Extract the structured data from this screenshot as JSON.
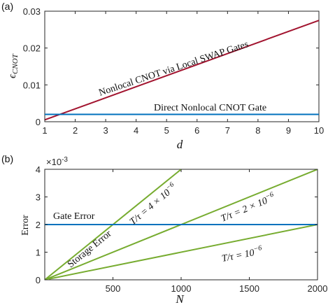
{
  "chart_data": [
    {
      "type": "line",
      "panel_label": "(a)",
      "xlabel": "d",
      "ylabel": "ϵ",
      "ylabel_sub": "CNOT",
      "xlim": [
        1,
        10
      ],
      "ylim": [
        0,
        0.03
      ],
      "xticks": [
        1,
        2,
        3,
        4,
        5,
        6,
        7,
        8,
        9,
        10
      ],
      "yticks": [
        0,
        0.01,
        0.02,
        0.03
      ],
      "ytick_labels": [
        "0",
        "0.01",
        "0.02",
        "0.03"
      ],
      "grid": false,
      "series": [
        {
          "name": "Nonlocal CNOT via Local SWAP Gates",
          "color": "#a2142f",
          "x": [
            1,
            10
          ],
          "y": [
            0.0005,
            0.0275
          ]
        },
        {
          "name": "Direct Nonlocal CNOT Gate",
          "color": "#0072bd",
          "x": [
            1,
            10
          ],
          "y": [
            0.002,
            0.002
          ]
        }
      ]
    },
    {
      "type": "line",
      "panel_label": "(b)",
      "xlabel": "N",
      "ylabel": "Error",
      "y_exponent": "×10",
      "y_exponent_power": "-3",
      "xlim": [
        0,
        2000
      ],
      "ylim": [
        0,
        4
      ],
      "xticks": [
        0,
        500,
        1000,
        1500,
        2000
      ],
      "yticks": [
        0,
        1,
        2,
        3,
        4
      ],
      "grid": false,
      "annotations": {
        "gate": "Gate Error",
        "storage": "Storage Error"
      },
      "series": [
        {
          "name": "T/τ = 4 × 10",
          "power": "−6",
          "color": "#77ac30",
          "x": [
            0,
            1000
          ],
          "y": [
            0,
            4
          ]
        },
        {
          "name": "T/τ = 2 × 10",
          "power": "−6",
          "color": "#77ac30",
          "x": [
            0,
            2000
          ],
          "y": [
            0,
            4
          ]
        },
        {
          "name": "T/τ = 10",
          "power": "−6",
          "color": "#77ac30",
          "x": [
            0,
            2000
          ],
          "y": [
            0,
            2
          ]
        },
        {
          "name": "Gate Error",
          "color": "#0072bd",
          "x": [
            0,
            2000
          ],
          "y": [
            2,
            2
          ]
        }
      ]
    }
  ]
}
